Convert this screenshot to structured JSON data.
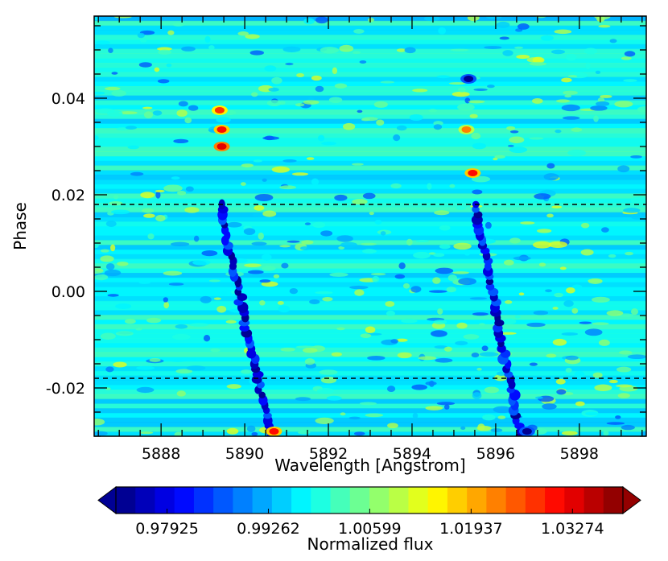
{
  "chart_data": {
    "type": "heatmap",
    "title": "",
    "xlabel": "Wavelength [Angstrom]",
    "ylabel": "Phase",
    "xlim": [
      5886.4,
      5899.6
    ],
    "ylim": [
      -0.03,
      0.057
    ],
    "x_ticks": [
      5888,
      5890,
      5892,
      5894,
      5896,
      5898
    ],
    "x_tick_labels": [
      "5888",
      "5890",
      "5892",
      "5894",
      "5896",
      "5898"
    ],
    "y_ticks": [
      -0.02,
      0.0,
      0.02,
      0.04
    ],
    "y_tick_labels": [
      "-0.02",
      "0.00",
      "0.02",
      "0.04"
    ],
    "reference_lines": [
      {
        "orientation": "horizontal",
        "y": 0.018,
        "style": "dashed",
        "color": "#000000"
      },
      {
        "orientation": "horizontal",
        "y": -0.018,
        "style": "dashed",
        "color": "#000000"
      }
    ],
    "features": [
      {
        "kind": "absorption_trail",
        "x_at_ymin": 5890.6,
        "x_at_ymax": 5889.4,
        "y_range": [
          -0.03,
          0.018
        ],
        "min_value": 0.972
      },
      {
        "kind": "absorption_trail",
        "x_at_ymin": 5896.6,
        "x_at_ymax": 5895.5,
        "y_range": [
          -0.03,
          0.018
        ],
        "min_value": 0.972
      },
      {
        "kind": "emission_blob",
        "x": 5889.45,
        "y": 0.03,
        "value": 1.034
      },
      {
        "kind": "emission_blob",
        "x": 5889.45,
        "y": 0.0335,
        "value": 1.03
      },
      {
        "kind": "emission_blob",
        "x": 5889.4,
        "y": 0.0375,
        "value": 1.028
      },
      {
        "kind": "emission_blob",
        "x": 5895.45,
        "y": 0.0245,
        "value": 1.03
      },
      {
        "kind": "emission_blob",
        "x": 5895.3,
        "y": 0.0335,
        "value": 1.022
      },
      {
        "kind": "emission_blob",
        "x": 5890.7,
        "y": -0.029,
        "value": 1.03
      },
      {
        "kind": "absorption_blob",
        "x": 5895.35,
        "y": 0.044,
        "value": 0.975
      },
      {
        "kind": "absorption_blob",
        "x": 5896.75,
        "y": -0.029,
        "value": 0.975
      }
    ],
    "background_value": 0.998,
    "colorbar": {
      "label": "Normalized flux",
      "vmin": 0.9725,
      "vmax": 1.0394,
      "n_levels": 26,
      "extend": "both",
      "orientation": "horizontal",
      "tick_values": [
        0.97925,
        0.99262,
        1.00599,
        1.01937,
        1.03274
      ],
      "tick_labels": [
        "0.97925",
        "0.99262",
        "1.00599",
        "1.01937",
        "1.03274"
      ],
      "colormap": "jet"
    },
    "grid": false,
    "legend": "none"
  }
}
